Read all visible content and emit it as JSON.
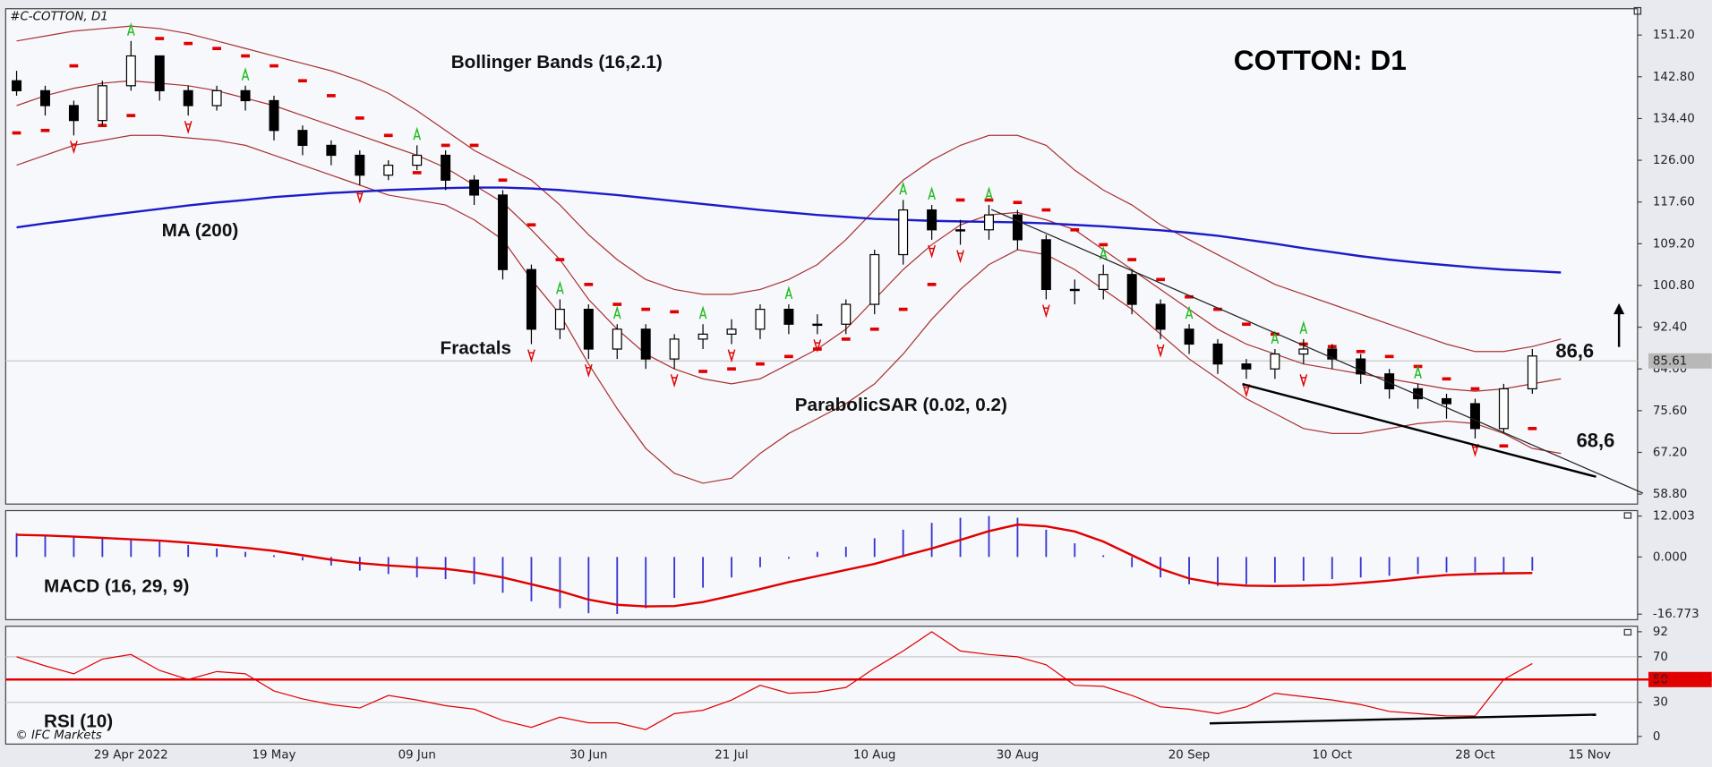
{
  "chart_data": [
    {
      "type": "candlestick",
      "title": "COTTON: D1",
      "symbol": "#C-COTTON, D1",
      "credit": "© IFC Markets",
      "categories": [
        null,
        null,
        null,
        null,
        "29 Apr 2022",
        null,
        null,
        null,
        null,
        "19 May",
        null,
        null,
        null,
        null,
        "09 Jun",
        null,
        null,
        null,
        null,
        null,
        "30 Jun",
        null,
        null,
        null,
        null,
        "21 Jul",
        null,
        null,
        null,
        null,
        "10 Aug",
        null,
        null,
        null,
        null,
        "30 Aug",
        null,
        null,
        null,
        null,
        null,
        "20 Sep",
        null,
        null,
        null,
        null,
        "10 Oct",
        null,
        null,
        null,
        null,
        "28 Oct",
        null,
        null,
        null,
        "15 Nov"
      ],
      "open": [
        142,
        140,
        137,
        134,
        141,
        147,
        140,
        137,
        140,
        138,
        132,
        129,
        127,
        123,
        125,
        127,
        122,
        119,
        104,
        92,
        96,
        88,
        92,
        86,
        90,
        91,
        92,
        96,
        93,
        93,
        97,
        107,
        116,
        112,
        112,
        115,
        110,
        100,
        100,
        103,
        97,
        92,
        89,
        85,
        84,
        87,
        88,
        86,
        83,
        80,
        78,
        77,
        72,
        80,
        null,
        null
      ],
      "high": [
        144,
        141,
        138,
        142,
        150,
        147,
        141,
        141,
        141,
        139,
        133,
        130,
        128,
        126,
        129,
        128,
        123,
        120,
        105,
        98,
        97,
        93,
        93,
        91,
        93,
        94,
        97,
        97,
        95,
        98,
        108,
        118,
        117,
        114,
        117,
        116,
        111,
        102,
        105,
        104,
        98,
        93,
        90,
        86,
        88,
        90,
        89,
        87,
        84,
        81,
        79,
        78,
        81,
        88,
        null,
        null
      ],
      "low": [
        139,
        135,
        131,
        133,
        140,
        138,
        135,
        136,
        136,
        130,
        127,
        125,
        121,
        122,
        124,
        120,
        117,
        102,
        89,
        90,
        86,
        86,
        84,
        84,
        88,
        89,
        90,
        91,
        91,
        91,
        95,
        105,
        110,
        109,
        110,
        108,
        98,
        97,
        98,
        95,
        90,
        87,
        83,
        82,
        82,
        85,
        84,
        81,
        78,
        76,
        74,
        70,
        71,
        79,
        null,
        null
      ],
      "close": [
        140,
        137,
        134,
        141,
        147,
        140,
        137,
        140,
        138,
        132,
        129,
        127,
        123,
        125,
        127,
        122,
        119,
        104,
        92,
        96,
        88,
        92,
        86,
        90,
        91,
        92,
        96,
        93,
        93,
        97,
        107,
        116,
        112,
        112,
        115,
        110,
        100,
        100,
        103,
        97,
        92,
        89,
        85,
        84,
        87,
        88,
        86,
        83,
        80,
        78,
        77,
        72,
        80,
        86.6,
        null,
        null
      ],
      "last_price": 85.61,
      "ylim": [
        56.8,
        156.5
      ],
      "yticks": [
        {
          "value": 151.2,
          "label": "151.20"
        },
        {
          "value": 142.8,
          "label": "142.80"
        },
        {
          "value": 134.4,
          "label": "134.40"
        },
        {
          "value": 126,
          "label": "126.00"
        },
        {
          "value": 117.6,
          "label": "117.60"
        },
        {
          "value": 109.2,
          "label": "109.20"
        },
        {
          "value": 100.8,
          "label": "100.80"
        },
        {
          "value": 92.4,
          "label": "92.40"
        },
        {
          "value": 84,
          "label": "84.00"
        },
        {
          "value": 75.6,
          "label": "75.60"
        },
        {
          "value": 67.2,
          "label": "67.20"
        },
        {
          "value": 58.8,
          "label": "58.80"
        }
      ],
      "ma": {
        "label": "MA (200)",
        "color": "#1c1cc8",
        "values": [
          112.5,
          113.3,
          114,
          114.8,
          115.5,
          116.2,
          116.9,
          117.5,
          118,
          118.6,
          119,
          119.4,
          119.7,
          120,
          120.2,
          120.4,
          120.5,
          120.5,
          120.3,
          120,
          119.5,
          119,
          118.4,
          117.8,
          117.2,
          116.6,
          116,
          115.5,
          115,
          114.6,
          114.2,
          114,
          113.8,
          113.7,
          113.6,
          113.5,
          113.3,
          113,
          112.7,
          112.3,
          111.9,
          111.4,
          110.8,
          110,
          109.2,
          108.3,
          107.5,
          106.7,
          106,
          105.4,
          104.9,
          104.4,
          104,
          103.7,
          103.4,
          null
        ]
      },
      "bollinger": {
        "label": "Bollinger Bands (16,2.1)",
        "color": "#a83232",
        "upper": [
          150,
          151,
          152,
          152.5,
          153,
          152.5,
          151.5,
          150,
          148.5,
          147,
          145.5,
          144,
          142,
          139.5,
          136,
          132,
          128,
          125,
          122,
          117,
          111,
          106,
          102,
          100,
          99,
          99,
          100,
          102,
          105,
          110,
          116,
          122,
          126,
          129,
          131,
          131,
          129,
          124,
          120,
          117,
          113,
          110,
          107,
          104,
          101,
          99,
          97,
          95,
          93,
          91,
          89,
          87.5,
          87.5,
          88.5,
          90,
          null
        ],
        "middle": [
          137,
          139,
          140.5,
          141.5,
          142,
          141.5,
          141,
          140,
          138.5,
          137,
          135,
          133,
          131,
          129,
          127,
          124.5,
          121,
          117.5,
          112,
          106,
          98,
          92,
          87,
          84,
          82,
          81,
          82,
          85,
          88,
          92,
          98,
          104,
          109,
          113,
          115,
          115.5,
          114,
          112,
          108,
          104,
          100,
          96,
          92,
          89,
          87,
          85,
          84,
          83,
          82,
          81,
          80,
          79.5,
          80,
          81,
          82,
          null
        ],
        "lower": [
          125,
          127,
          129,
          130,
          131,
          131,
          130.5,
          130,
          129,
          127,
          125,
          123,
          121,
          119,
          118,
          117,
          114,
          110,
          102,
          95,
          85,
          76,
          68,
          63,
          61,
          62,
          67,
          71,
          74,
          77,
          81,
          87,
          94,
          100,
          105,
          108,
          107,
          104,
          100,
          96,
          91,
          86,
          82,
          78,
          75,
          72,
          71,
          71,
          72,
          73,
          73.5,
          73,
          71,
          68,
          67,
          null
        ]
      },
      "sar": {
        "label": "ParabolicSAR (0.02, 0.2)",
        "color": "#e00000",
        "values": [
          131.5,
          132,
          145,
          133,
          135,
          150.5,
          149.5,
          148.5,
          147,
          145,
          142,
          139,
          134.5,
          131,
          123.5,
          129,
          129,
          122,
          113,
          106,
          101,
          97,
          96,
          95.5,
          83.5,
          84,
          85,
          86.5,
          88,
          90,
          92,
          96,
          101,
          118,
          118,
          117.5,
          116,
          112,
          109,
          106,
          102,
          98.5,
          96,
          93,
          91,
          89,
          88.5,
          87.5,
          86.5,
          84.5,
          82,
          80,
          68.5,
          72,
          null,
          null
        ]
      },
      "fractals": {
        "label": "Fractals",
        "up_color": "#22bb22",
        "down_color": "#e00000",
        "up": [
          null,
          null,
          null,
          null,
          150,
          null,
          null,
          null,
          141,
          null,
          null,
          null,
          null,
          null,
          129,
          null,
          null,
          null,
          null,
          98,
          null,
          93,
          null,
          null,
          93,
          null,
          null,
          97,
          null,
          null,
          null,
          118,
          117,
          null,
          117,
          null,
          null,
          null,
          105,
          null,
          null,
          93,
          null,
          null,
          88,
          90,
          null,
          null,
          null,
          81,
          null,
          null,
          null,
          null,
          null,
          null
        ],
        "down": [
          null,
          null,
          131,
          null,
          null,
          null,
          135,
          null,
          null,
          null,
          null,
          null,
          121,
          null,
          null,
          null,
          null,
          null,
          89,
          null,
          86,
          null,
          null,
          84,
          null,
          89,
          null,
          null,
          91,
          null,
          null,
          null,
          110,
          109,
          null,
          null,
          98,
          null,
          null,
          null,
          90,
          null,
          null,
          82,
          null,
          84,
          null,
          null,
          null,
          null,
          null,
          70,
          null,
          null,
          null,
          null
        ]
      },
      "annotations": [
        "86,6",
        "68,6"
      ]
    },
    {
      "type": "macd",
      "title": "MACD (16, 29, 9)",
      "ylim": [
        -18.4,
        13.6
      ],
      "yticks": [
        {
          "value": 12.003,
          "label": "12.003"
        },
        {
          "value": 0,
          "label": "0.000"
        },
        {
          "value": -16.773,
          "label": "-16.773"
        }
      ],
      "histogram": {
        "color": "#3434d0",
        "values": [
          7,
          6.5,
          6,
          5.5,
          5,
          4.5,
          3.5,
          2.5,
          1.5,
          0.5,
          -1,
          -2.5,
          -4,
          -5,
          -6,
          -6.5,
          -8,
          -10.5,
          -13,
          -15,
          -16.5,
          -16.7,
          -15,
          -12,
          -9,
          -6,
          -3,
          -0.5,
          1.5,
          3,
          5.5,
          8,
          10,
          11.5,
          12,
          11.5,
          8,
          4,
          0.5,
          -3,
          -6,
          -8,
          -8.5,
          -8,
          -7.5,
          -7,
          -6.5,
          -6,
          -5.5,
          -5,
          -4.5,
          -4.5,
          -4.5,
          -4,
          null,
          null
        ]
      },
      "signal": {
        "color": "#e00000",
        "values": [
          6.5,
          6.3,
          6,
          5.6,
          5.2,
          4.8,
          4.2,
          3.5,
          2.7,
          1.8,
          0.5,
          -0.8,
          -1.8,
          -2.5,
          -3,
          -3.5,
          -4.5,
          -6,
          -8,
          -10,
          -12.5,
          -14,
          -14.5,
          -14.4,
          -13.2,
          -11.4,
          -9.4,
          -7.4,
          -5.6,
          -3.8,
          -2,
          0.3,
          2.5,
          5,
          7.6,
          9.5,
          9,
          7.5,
          4.5,
          0.5,
          -3.5,
          -6.3,
          -7.8,
          -8.4,
          -8.5,
          -8.4,
          -8.2,
          -7.6,
          -6.9,
          -6,
          -5.3,
          -5,
          -4.8,
          -4.7,
          null,
          null
        ]
      }
    },
    {
      "type": "rsi",
      "title": "RSI (10)",
      "ylim": [
        -6.7,
        96.8
      ],
      "yticks": [
        92,
        70,
        50,
        30,
        0
      ],
      "levels": [
        70,
        50,
        30
      ],
      "highlight_level": 50,
      "color": "#e00000",
      "values": [
        70,
        62,
        55,
        68,
        72,
        58,
        50,
        57,
        55,
        40,
        33,
        28,
        25,
        36,
        32,
        27,
        24,
        14,
        8,
        17,
        12,
        12,
        6,
        20,
        23,
        32,
        45,
        38,
        39,
        43,
        60,
        75,
        92,
        75,
        72,
        70,
        63,
        45,
        44,
        36,
        26,
        24,
        20,
        26,
        38,
        35,
        32,
        28,
        22,
        20,
        18,
        18,
        50,
        64,
        null,
        null
      ]
    }
  ]
}
